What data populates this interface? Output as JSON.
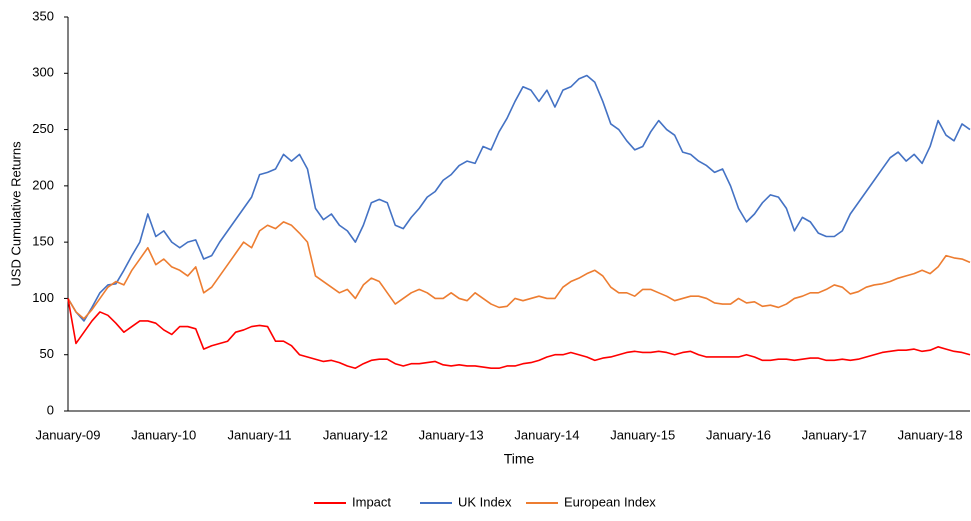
{
  "chart_data": {
    "type": "line",
    "y_label": "USD Cumulative Returns",
    "x_label": "Time",
    "categories": [
      "January-09",
      null,
      null,
      null,
      null,
      null,
      null,
      null,
      null,
      null,
      null,
      null,
      "January-10",
      null,
      null,
      null,
      null,
      null,
      null,
      null,
      null,
      null,
      null,
      null,
      "January-11",
      null,
      null,
      null,
      null,
      null,
      null,
      null,
      null,
      null,
      null,
      null,
      "January-12",
      null,
      null,
      null,
      null,
      null,
      null,
      null,
      null,
      null,
      null,
      null,
      "January-13",
      null,
      null,
      null,
      null,
      null,
      null,
      null,
      null,
      null,
      null,
      null,
      "January-14",
      null,
      null,
      null,
      null,
      null,
      null,
      null,
      null,
      null,
      null,
      null,
      "January-15",
      null,
      null,
      null,
      null,
      null,
      null,
      null,
      null,
      null,
      null,
      null,
      "January-16",
      null,
      null,
      null,
      null,
      null,
      null,
      null,
      null,
      null,
      null,
      null,
      "January-17",
      null,
      null,
      null,
      null,
      null,
      null,
      null,
      null,
      null,
      null,
      null,
      "January-18",
      null,
      null,
      null,
      null,
      null
    ],
    "series": [
      {
        "name": "Impact",
        "color": "#ff0000",
        "values": [
          100,
          60,
          70,
          80,
          88,
          85,
          78,
          70,
          75,
          80,
          80,
          78,
          72,
          68,
          75,
          75,
          73,
          55,
          58,
          60,
          62,
          70,
          72,
          75,
          76,
          75,
          62,
          62,
          58,
          50,
          48,
          46,
          44,
          45,
          43,
          40,
          38,
          42,
          45,
          46,
          46,
          42,
          40,
          42,
          42,
          43,
          44,
          41,
          40,
          41,
          40,
          40,
          39,
          38,
          38,
          40,
          40,
          42,
          43,
          45,
          48,
          50,
          50,
          52,
          50,
          48,
          45,
          47,
          48,
          50,
          52,
          53,
          52,
          52,
          53,
          52,
          50,
          52,
          53,
          50,
          48,
          48,
          48,
          48,
          48,
          50,
          48,
          45,
          45,
          46,
          46,
          45,
          46,
          47,
          47,
          45,
          45,
          46,
          45,
          46,
          48,
          50,
          52,
          53,
          54,
          54,
          55,
          53,
          54,
          57,
          55,
          53,
          52,
          50
        ]
      },
      {
        "name": "UK Index",
        "color": "#4472c4",
        "values": [
          100,
          88,
          80,
          92,
          105,
          112,
          113,
          125,
          138,
          150,
          175,
          155,
          160,
          150,
          145,
          150,
          152,
          135,
          138,
          150,
          160,
          170,
          180,
          190,
          210,
          212,
          215,
          228,
          222,
          228,
          215,
          180,
          170,
          175,
          165,
          160,
          150,
          165,
          185,
          188,
          185,
          165,
          162,
          172,
          180,
          190,
          195,
          205,
          210,
          218,
          222,
          220,
          235,
          232,
          248,
          260,
          275,
          288,
          285,
          275,
          285,
          270,
          285,
          288,
          295,
          298,
          292,
          275,
          255,
          250,
          240,
          232,
          235,
          248,
          258,
          250,
          245,
          230,
          228,
          222,
          218,
          212,
          215,
          200,
          180,
          168,
          175,
          185,
          192,
          190,
          180,
          160,
          172,
          168,
          158,
          155,
          155,
          160,
          175,
          185,
          195,
          205,
          215,
          225,
          230,
          222,
          228,
          220,
          235,
          258,
          245,
          240,
          255,
          250
        ]
      },
      {
        "name": "European Index",
        "color": "#ed7d31",
        "values": [
          100,
          88,
          82,
          90,
          100,
          110,
          115,
          112,
          125,
          135,
          145,
          130,
          135,
          128,
          125,
          120,
          128,
          105,
          110,
          120,
          130,
          140,
          150,
          145,
          160,
          165,
          162,
          168,
          165,
          158,
          150,
          120,
          115,
          110,
          105,
          108,
          100,
          112,
          118,
          115,
          105,
          95,
          100,
          105,
          108,
          105,
          100,
          100,
          105,
          100,
          98,
          105,
          100,
          95,
          92,
          93,
          100,
          98,
          100,
          102,
          100,
          100,
          110,
          115,
          118,
          122,
          125,
          120,
          110,
          105,
          105,
          102,
          108,
          108,
          105,
          102,
          98,
          100,
          102,
          102,
          100,
          96,
          95,
          95,
          100,
          96,
          97,
          93,
          94,
          92,
          95,
          100,
          102,
          105,
          105,
          108,
          112,
          110,
          104,
          106,
          110,
          112,
          113,
          115,
          118,
          120,
          122,
          125,
          122,
          128,
          138,
          136,
          135,
          132
        ]
      }
    ],
    "ylim": [
      0,
      350
    ],
    "yticks": [
      0,
      50,
      100,
      150,
      200,
      250,
      300,
      350
    ],
    "grid": false,
    "legend": "bottom"
  }
}
